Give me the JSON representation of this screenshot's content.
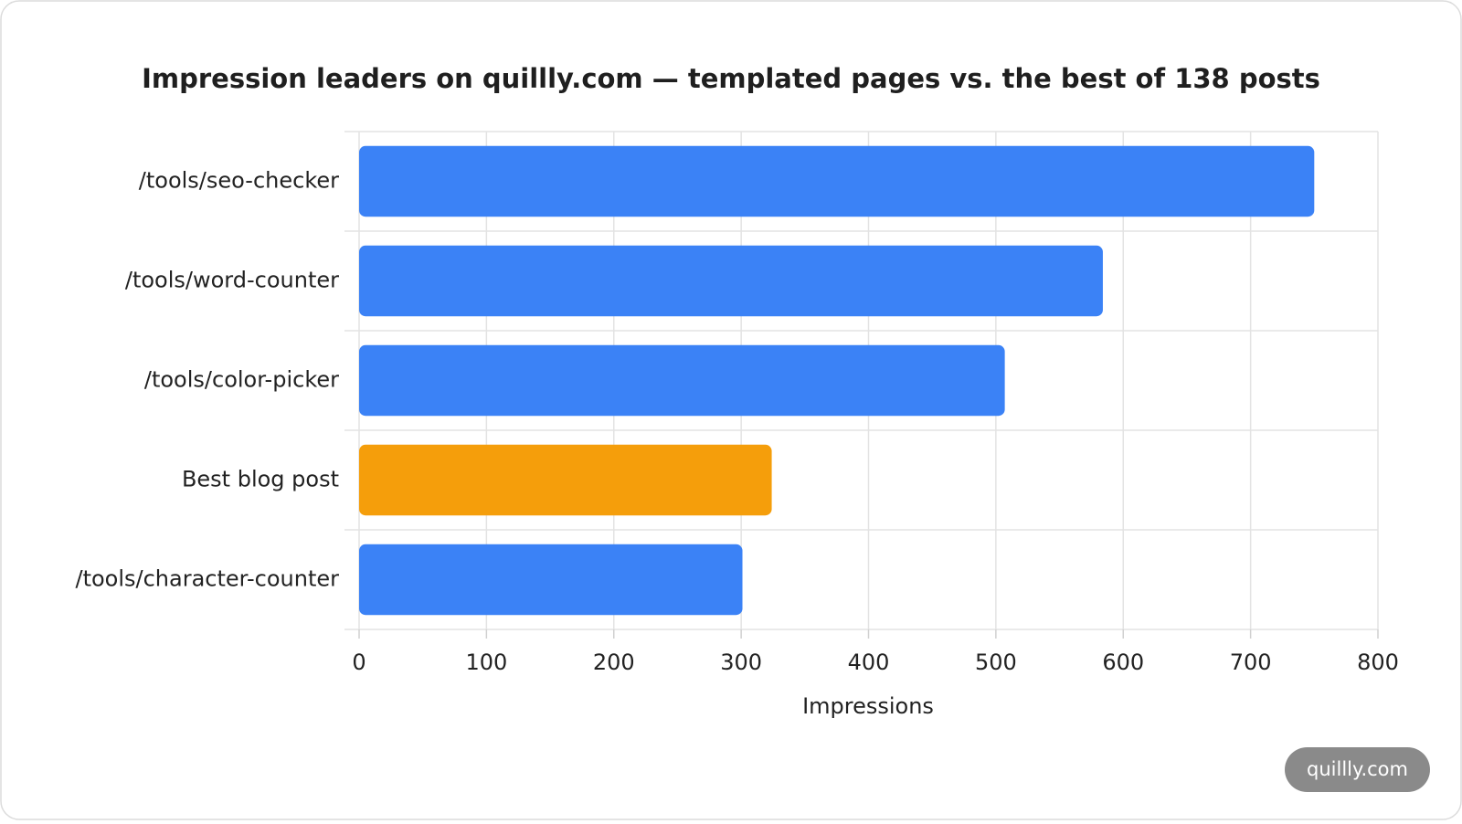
{
  "chart_data": {
    "type": "bar",
    "orientation": "horizontal",
    "title": "Impression leaders on quillly.com — templated pages vs. the best of 138 posts",
    "categories": [
      "/tools/seo-checker",
      "/tools/word-counter",
      "/tools/color-picker",
      "Best blog post",
      "/tools/character-counter"
    ],
    "values": [
      750,
      584,
      507,
      324,
      301
    ],
    "colors": [
      "#3b82f6",
      "#3b82f6",
      "#3b82f6",
      "#f59e0b",
      "#3b82f6"
    ],
    "x_label": "Impressions",
    "xlim": [
      0,
      800
    ],
    "xticks": [
      0,
      100,
      200,
      300,
      400,
      500,
      600,
      700,
      800
    ],
    "grid": true
  },
  "badge": "quillly.com"
}
